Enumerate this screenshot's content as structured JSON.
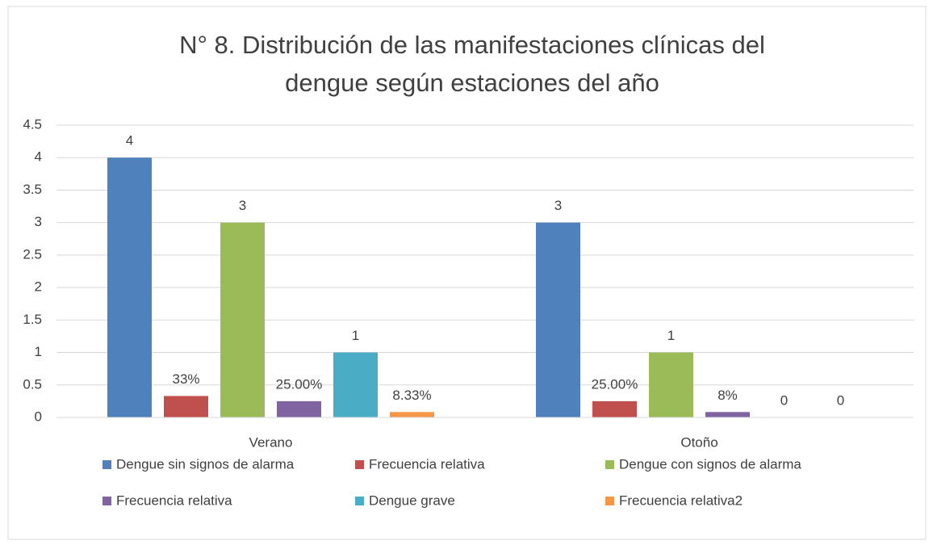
{
  "chart_data": {
    "type": "bar",
    "title": [
      "N° 8. Distribución de las manifestaciones clínicas del",
      "dengue según estaciones del año"
    ],
    "categories": [
      "Verano",
      "Otoño"
    ],
    "series": [
      {
        "name": "Dengue sin signos de alarma",
        "color": "#4f81bd",
        "values": [
          4,
          3
        ]
      },
      {
        "name": "Frecuencia relativa",
        "color": "#c0504d",
        "values": [
          0.33,
          0.25
        ],
        "value_labels": [
          "33%",
          "25.00%"
        ]
      },
      {
        "name": "Dengue con signos de alarma",
        "color": "#9bbb59",
        "values": [
          3,
          1
        ]
      },
      {
        "name": "Frecuencia relativa",
        "color": "#8064a2",
        "values": [
          0.25,
          0.0833
        ],
        "value_labels": [
          "25.00%",
          "8%"
        ]
      },
      {
        "name": "Dengue grave",
        "color": "#4bacc6",
        "values": [
          1,
          0
        ]
      },
      {
        "name": "Frecuencia relativa2",
        "color": "#f79646",
        "values": [
          0.0833,
          0
        ],
        "value_labels": [
          "8.33%",
          "0"
        ]
      }
    ],
    "ylim": [
      0,
      4.5
    ],
    "yticks": [
      0,
      0.5,
      1,
      1.5,
      2,
      2.5,
      3,
      3.5,
      4,
      4.5
    ],
    "grid": true,
    "legend": "bottom"
  }
}
